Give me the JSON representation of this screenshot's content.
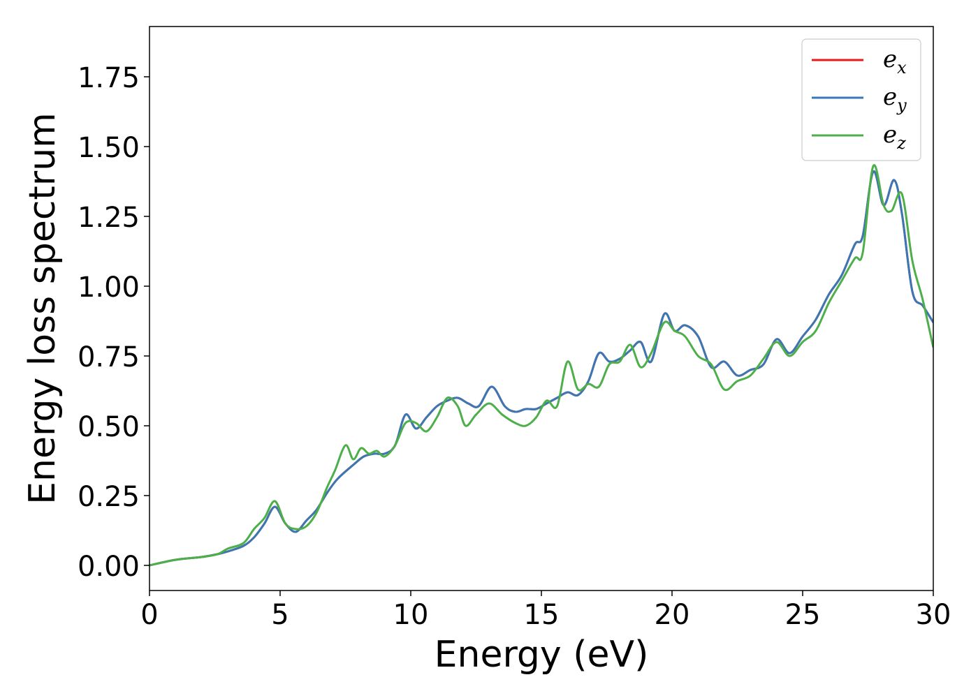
{
  "chart_data": {
    "type": "line",
    "title": "",
    "xlabel": "Energy (eV)",
    "ylabel": "Energy loss spectrum",
    "xlim": [
      0,
      30
    ],
    "ylim": [
      -0.09,
      1.93
    ],
    "xticks": [
      0,
      5,
      10,
      15,
      20,
      25,
      30
    ],
    "yticks": [
      0.0,
      0.25,
      0.5,
      0.75,
      1.0,
      1.25,
      1.5,
      1.75
    ],
    "ytick_labels": [
      "0.00",
      "0.25",
      "0.50",
      "0.75",
      "1.00",
      "1.25",
      "1.50",
      "1.75"
    ],
    "grid": false,
    "legend_position": "top-right",
    "series": [
      {
        "name": "e",
        "subscript": "x",
        "color": "#e41a1c",
        "x": [
          0,
          1,
          2,
          2.6,
          3,
          3.6,
          4,
          4.4,
          4.8,
          5.2,
          5.6,
          6,
          6.4,
          6.8,
          7.2,
          7.8,
          8.2,
          8.6,
          9,
          9.4,
          9.8,
          10.2,
          10.6,
          11,
          11.4,
          11.8,
          12.2,
          12.6,
          13.1,
          13.6,
          14,
          14.4,
          14.8,
          15.2,
          15.6,
          16,
          16.4,
          16.8,
          17.2,
          17.6,
          18,
          18.4,
          18.8,
          19.2,
          19.7,
          20.1,
          20.5,
          21,
          21.5,
          22,
          22.5,
          23,
          23.5,
          24,
          24.5,
          25,
          25.5,
          26,
          26.5,
          27,
          27.3,
          27.7,
          28.1,
          28.5,
          28.8,
          29.2,
          29.6,
          30
        ],
        "values": [
          0,
          0.02,
          0.03,
          0.04,
          0.05,
          0.07,
          0.1,
          0.15,
          0.21,
          0.15,
          0.12,
          0.16,
          0.2,
          0.26,
          0.31,
          0.36,
          0.39,
          0.4,
          0.4,
          0.43,
          0.54,
          0.49,
          0.53,
          0.57,
          0.59,
          0.6,
          0.58,
          0.57,
          0.64,
          0.57,
          0.55,
          0.56,
          0.56,
          0.58,
          0.6,
          0.62,
          0.61,
          0.66,
          0.76,
          0.73,
          0.74,
          0.77,
          0.8,
          0.73,
          0.9,
          0.84,
          0.86,
          0.82,
          0.71,
          0.73,
          0.68,
          0.7,
          0.72,
          0.81,
          0.76,
          0.82,
          0.88,
          0.97,
          1.04,
          1.15,
          1.18,
          1.41,
          1.29,
          1.38,
          1.26,
          0.98,
          0.93,
          0.87
        ]
      },
      {
        "name": "e",
        "subscript": "y",
        "color": "#3a78b5",
        "x": [
          0,
          1,
          2,
          2.6,
          3,
          3.6,
          4,
          4.4,
          4.8,
          5.2,
          5.6,
          6,
          6.4,
          6.8,
          7.2,
          7.8,
          8.2,
          8.6,
          9,
          9.4,
          9.8,
          10.2,
          10.6,
          11,
          11.4,
          11.8,
          12.2,
          12.6,
          13.1,
          13.6,
          14,
          14.4,
          14.8,
          15.2,
          15.6,
          16,
          16.4,
          16.8,
          17.2,
          17.6,
          18,
          18.4,
          18.8,
          19.2,
          19.7,
          20.1,
          20.5,
          21,
          21.5,
          22,
          22.5,
          23,
          23.5,
          24,
          24.5,
          25,
          25.5,
          26,
          26.5,
          27,
          27.3,
          27.7,
          28.1,
          28.5,
          28.8,
          29.2,
          29.6,
          30
        ],
        "values": [
          0,
          0.02,
          0.03,
          0.04,
          0.05,
          0.07,
          0.1,
          0.15,
          0.21,
          0.15,
          0.12,
          0.16,
          0.2,
          0.26,
          0.31,
          0.36,
          0.39,
          0.4,
          0.4,
          0.43,
          0.54,
          0.49,
          0.53,
          0.57,
          0.59,
          0.6,
          0.58,
          0.57,
          0.64,
          0.57,
          0.55,
          0.56,
          0.56,
          0.58,
          0.6,
          0.62,
          0.61,
          0.66,
          0.76,
          0.73,
          0.74,
          0.77,
          0.8,
          0.73,
          0.9,
          0.84,
          0.86,
          0.82,
          0.71,
          0.73,
          0.68,
          0.7,
          0.72,
          0.81,
          0.76,
          0.82,
          0.88,
          0.97,
          1.04,
          1.15,
          1.18,
          1.41,
          1.29,
          1.38,
          1.26,
          0.98,
          0.93,
          0.87
        ]
      },
      {
        "name": "e",
        "subscript": "z",
        "color": "#4daf4a",
        "x": [
          0,
          1,
          2,
          2.6,
          3,
          3.6,
          4,
          4.4,
          4.8,
          5.2,
          5.6,
          6,
          6.4,
          6.8,
          7.1,
          7.5,
          7.8,
          8.1,
          8.4,
          8.7,
          9,
          9.4,
          9.8,
          10.2,
          10.6,
          11,
          11.4,
          11.8,
          12.1,
          12.5,
          13,
          13.5,
          14,
          14.4,
          14.8,
          15.2,
          15.6,
          16,
          16.4,
          16.8,
          17.2,
          17.6,
          18,
          18.4,
          18.8,
          19.2,
          19.7,
          20.1,
          20.5,
          21,
          21.5,
          22,
          22.5,
          23,
          23.5,
          24,
          24.5,
          25,
          25.5,
          26,
          26.5,
          27,
          27.3,
          27.7,
          28.1,
          28.4,
          28.8,
          29.2,
          29.6,
          30
        ],
        "values": [
          0,
          0.02,
          0.03,
          0.04,
          0.06,
          0.08,
          0.13,
          0.17,
          0.23,
          0.15,
          0.13,
          0.14,
          0.19,
          0.28,
          0.34,
          0.43,
          0.38,
          0.42,
          0.4,
          0.41,
          0.39,
          0.43,
          0.51,
          0.51,
          0.48,
          0.53,
          0.6,
          0.57,
          0.5,
          0.54,
          0.58,
          0.54,
          0.51,
          0.5,
          0.53,
          0.59,
          0.57,
          0.73,
          0.63,
          0.65,
          0.64,
          0.72,
          0.73,
          0.79,
          0.71,
          0.76,
          0.87,
          0.84,
          0.82,
          0.75,
          0.72,
          0.63,
          0.66,
          0.68,
          0.74,
          0.8,
          0.75,
          0.8,
          0.84,
          0.94,
          1.02,
          1.1,
          1.12,
          1.43,
          1.29,
          1.27,
          1.33,
          1.09,
          0.95,
          0.78
        ]
      }
    ]
  }
}
